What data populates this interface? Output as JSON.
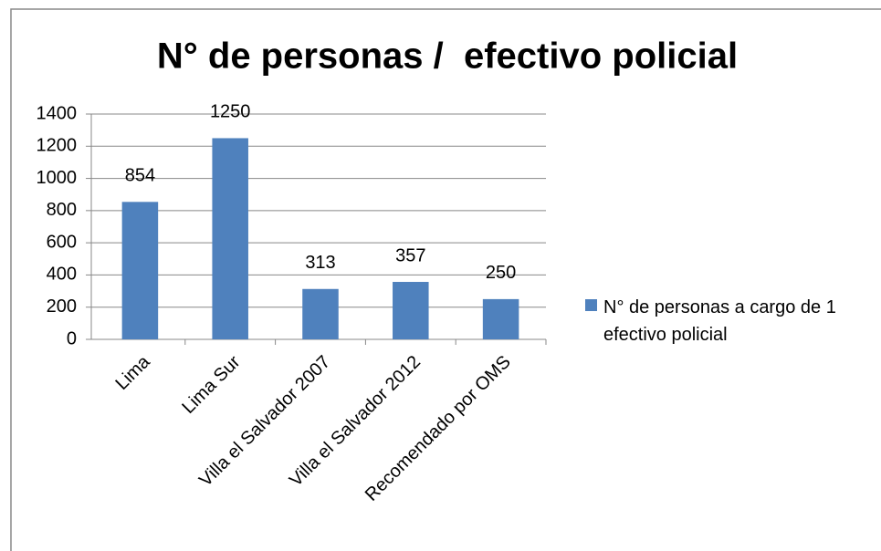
{
  "chart_data": {
    "type": "bar",
    "title": "N° de personas /  efectivo policial",
    "categories": [
      "Lima",
      "Lima Sur",
      "Villa el Salvador 2007",
      "Villa el Salvador 2012",
      "Recomendado por OMS"
    ],
    "series": [
      {
        "name": "N° de personas a cargo de 1 efectivo policial",
        "color": "#4f81bd",
        "values": [
          854,
          1250,
          313,
          357,
          250
        ]
      }
    ],
    "ylim": [
      0,
      1400
    ],
    "yticks": [
      0,
      200,
      400,
      600,
      800,
      1000,
      1200,
      1400
    ],
    "grid": true,
    "legend": "right"
  }
}
